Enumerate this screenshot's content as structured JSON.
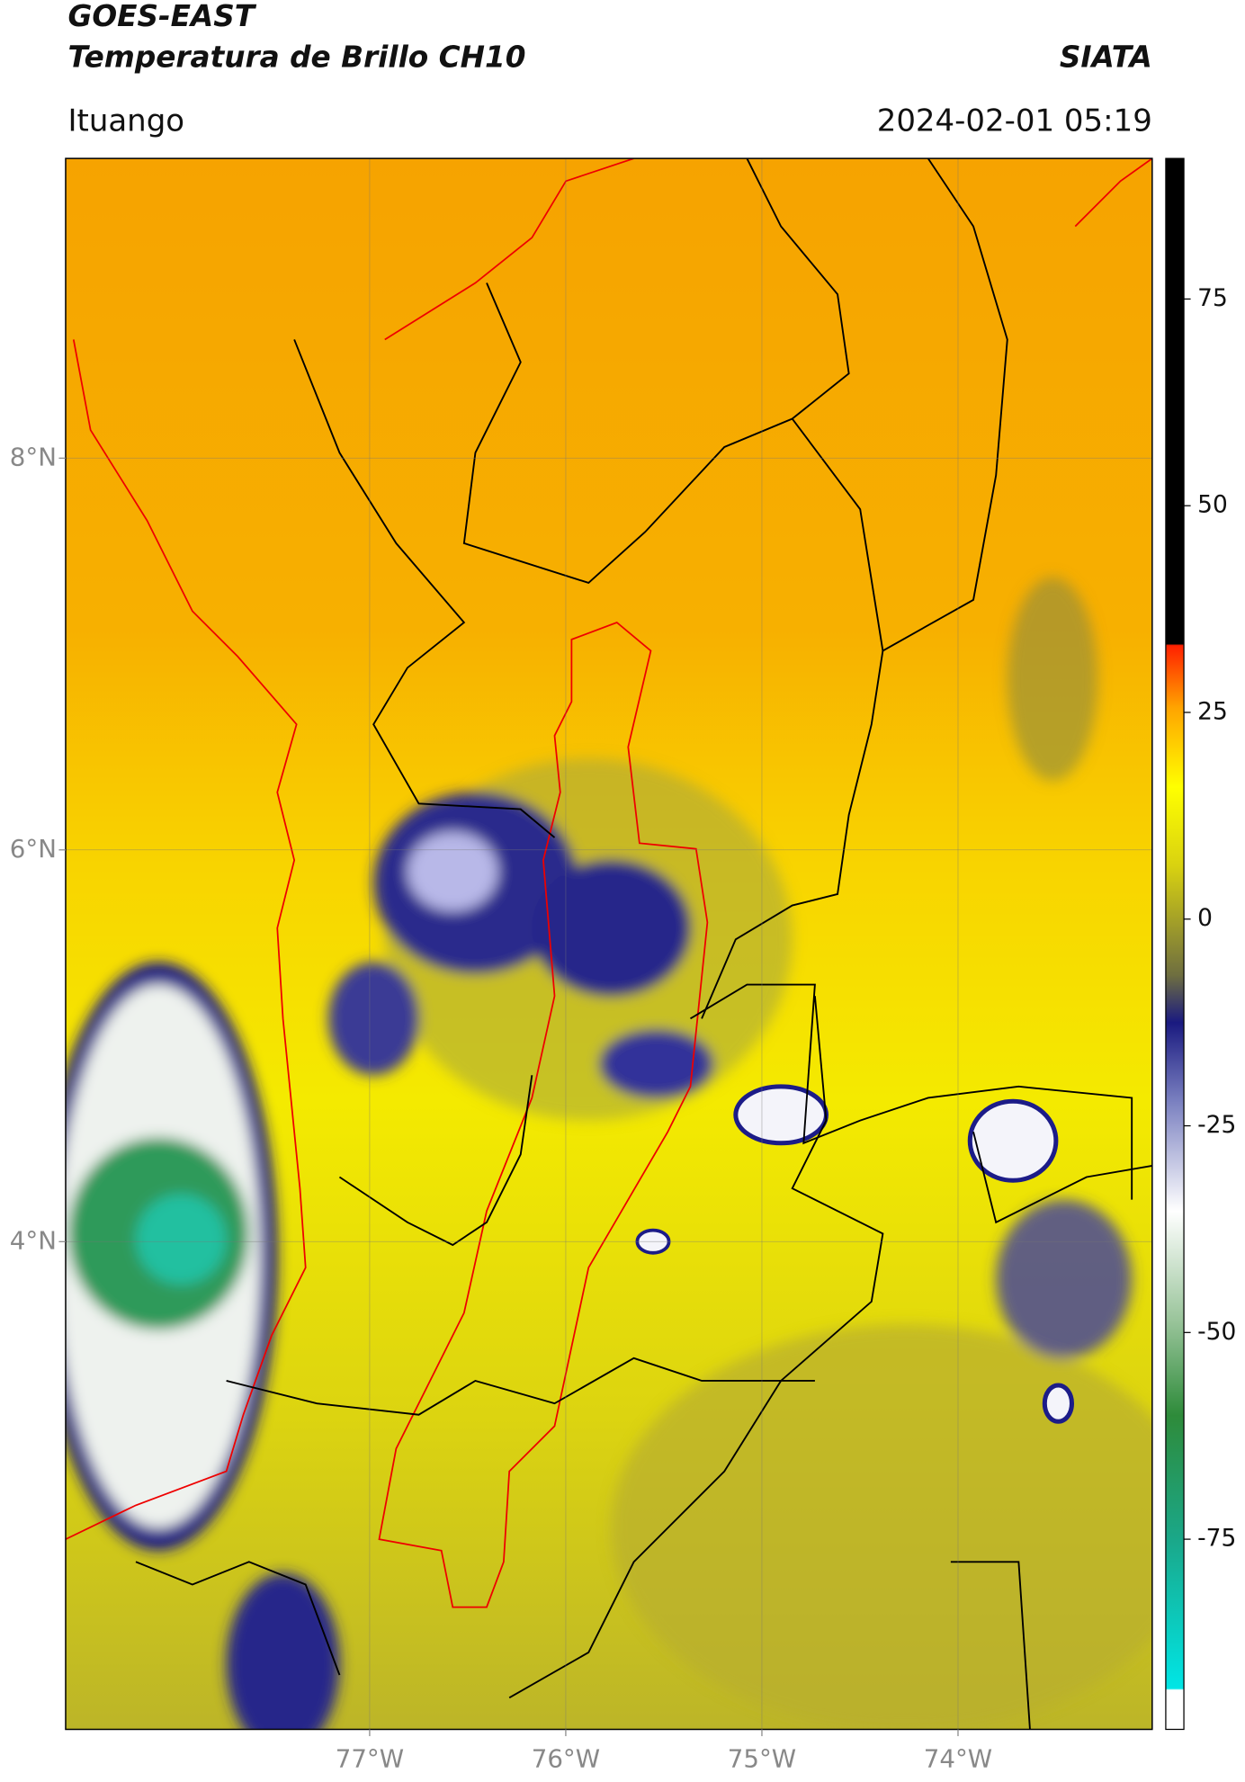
{
  "header": {
    "title": "GOES-EAST",
    "subtitle": "Temperatura de Brillo CH10",
    "source": "SIATA",
    "location": "Ituango",
    "datetime": "2024-02-01 05:19"
  },
  "map": {
    "xlim": [
      -78.55,
      -73.01
    ],
    "ylim": [
      1.51,
      9.53
    ],
    "xticks": [
      {
        "value": -77,
        "label": "77°W"
      },
      {
        "value": -76,
        "label": "76°W"
      },
      {
        "value": -75,
        "label": "75°W"
      },
      {
        "value": -74,
        "label": "74°W"
      }
    ],
    "yticks": [
      {
        "value": 4,
        "label": "4°N"
      },
      {
        "value": 6,
        "label": "6°N"
      },
      {
        "value": 8,
        "label": "8°N"
      }
    ]
  },
  "colorbar": {
    "lim": [
      -98,
      92
    ],
    "ticks": [
      -75,
      -50,
      -25,
      0,
      25,
      50,
      75
    ]
  }
}
